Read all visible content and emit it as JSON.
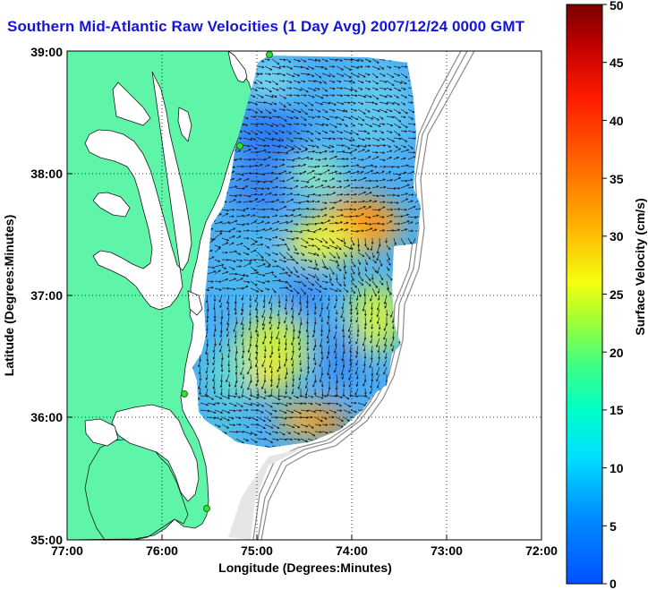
{
  "title": "Southern Mid-Atlantic Raw Velocities (1 Day Avg) 2007/12/24 0000 GMT",
  "map": {
    "x_axis": {
      "label": "Longitude (Degrees:Minutes)",
      "ticks": [
        "77:00",
        "76:00",
        "75:00",
        "74:00",
        "73:00",
        "72:00"
      ],
      "range_deg_west": [
        77,
        72
      ]
    },
    "y_axis": {
      "label": "Latitude (Degrees:Minutes)",
      "ticks": [
        "39:00",
        "38:00",
        "37:00",
        "36:00",
        "35:00"
      ],
      "range_deg_north": [
        35,
        39
      ]
    },
    "grid": "dotted",
    "land_color": "#5ef5a9",
    "colorbar": {
      "label": "Surface Velocity (cm/s)",
      "ticks": [
        "50",
        "45",
        "40",
        "35",
        "30",
        "25",
        "20",
        "15",
        "10",
        "5",
        "0"
      ],
      "range": [
        0,
        50
      ],
      "colors": [
        "#0000ff",
        "#00ffff",
        "#00ff80",
        "#ffff00",
        "#ff8000",
        "#ff0000",
        "#800000"
      ]
    },
    "stations": [
      "station-north",
      "station-mid",
      "station-central",
      "station-south"
    ]
  }
}
